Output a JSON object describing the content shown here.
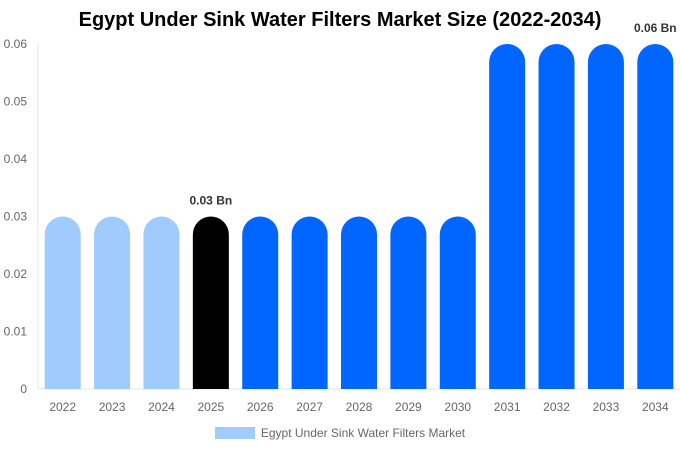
{
  "chart_data": {
    "type": "bar",
    "title": "Egypt Under Sink Water Filters Market Size (2022-2034)",
    "categories": [
      "2022",
      "2023",
      "2024",
      "2025",
      "2026",
      "2027",
      "2028",
      "2029",
      "2030",
      "2031",
      "2032",
      "2033",
      "2034"
    ],
    "series": [
      {
        "name": "Egypt Under Sink Water Filters Market",
        "values": [
          0.03,
          0.03,
          0.03,
          0.03,
          0.03,
          0.03,
          0.03,
          0.03,
          0.03,
          0.06,
          0.06,
          0.06,
          0.06
        ]
      }
    ],
    "bar_colors": [
      "#a0cbfc",
      "#a0cbfc",
      "#a0cbfc",
      "#000000",
      "#0066ff",
      "#0066ff",
      "#0066ff",
      "#0066ff",
      "#0066ff",
      "#0066ff",
      "#0066ff",
      "#0066ff",
      "#0066ff"
    ],
    "data_labels": [
      {
        "category": "2025",
        "text": "0.03 Bn"
      },
      {
        "category": "2034",
        "text": "0.06 Bn"
      }
    ],
    "ylim": [
      0,
      0.06
    ],
    "yticks": [
      "0",
      "0.01",
      "0.02",
      "0.03",
      "0.04",
      "0.05",
      "0.06"
    ],
    "xlabel": "",
    "ylabel": "",
    "grid": false,
    "legend": "bottom"
  }
}
